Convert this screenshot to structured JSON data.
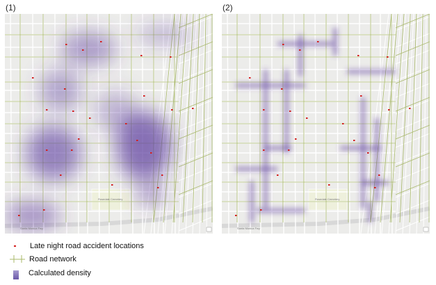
{
  "panels": [
    {
      "label": "(1)",
      "style": "kernel density"
    },
    {
      "label": "(2)",
      "style": "network density"
    }
  ],
  "map_labels": {
    "cemetery": "Rosedale Cemetery",
    "freeway": "Santa Monica Fwy"
  },
  "legend": {
    "accidents": "Late night road accident locations",
    "roads": "Road network",
    "density": "Calculated density"
  },
  "colors": {
    "accident": "#d42020",
    "road": "#a8b86a",
    "density": "#5b3a9e",
    "basemap": "#ececea",
    "cemetery": "#eef0dc"
  }
}
